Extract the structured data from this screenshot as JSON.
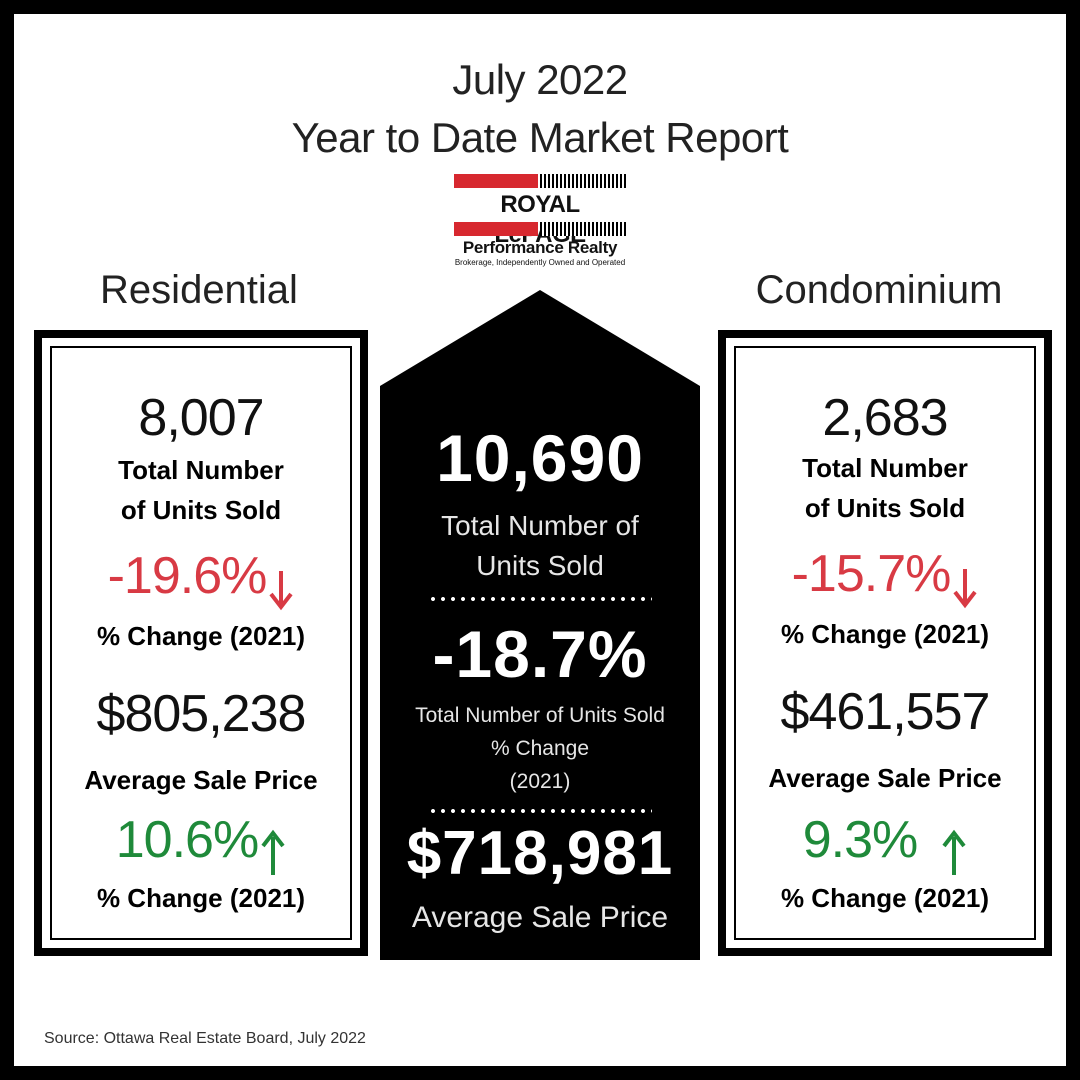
{
  "header": {
    "line1": "July 2022",
    "line2": "Year to Date Market Report"
  },
  "logo": {
    "brand": "ROYAL LePAGE",
    "name": "Performance Realty",
    "tagline": "Brokerage, Independently Owned and Operated"
  },
  "residential": {
    "heading": "Residential",
    "units_sold": "8,007",
    "units_label_1": "Total Number",
    "units_label_2": "of Units Sold",
    "units_change": "-19.6%",
    "units_change_label": "% Change (2021)",
    "avg_price": "$805,238",
    "avg_price_label": "Average Sale Price",
    "price_change": "10.6%",
    "price_change_label": "% Change (2021)"
  },
  "condominium": {
    "heading": "Condominium",
    "units_sold": "2,683",
    "units_label_1": "Total Number",
    "units_label_2": "of Units Sold",
    "units_change": "-15.7%",
    "units_change_label": "% Change (2021)",
    "avg_price": "$461,557",
    "avg_price_label": "Average Sale Price",
    "price_change": "9.3%",
    "price_change_label": "% Change (2021)"
  },
  "total": {
    "units_sold": "10,690",
    "units_label_1": "Total Number of",
    "units_label_2": "Units Sold",
    "units_change": "-18.7%",
    "units_change_label_1": "Total Number of Units Sold",
    "units_change_label_2": "% Change",
    "units_change_label_3": "(2021)",
    "avg_price": "$718,981",
    "avg_price_label": "Average Sale Price"
  },
  "colors": {
    "down": "#d83a44",
    "up": "#1f8a3a",
    "brand_red": "#d7282f"
  },
  "icons": {
    "down": "arrow-down-icon",
    "up": "arrow-up-icon"
  },
  "footer": {
    "source": "Source: Ottawa Real Estate Board, July 2022"
  }
}
